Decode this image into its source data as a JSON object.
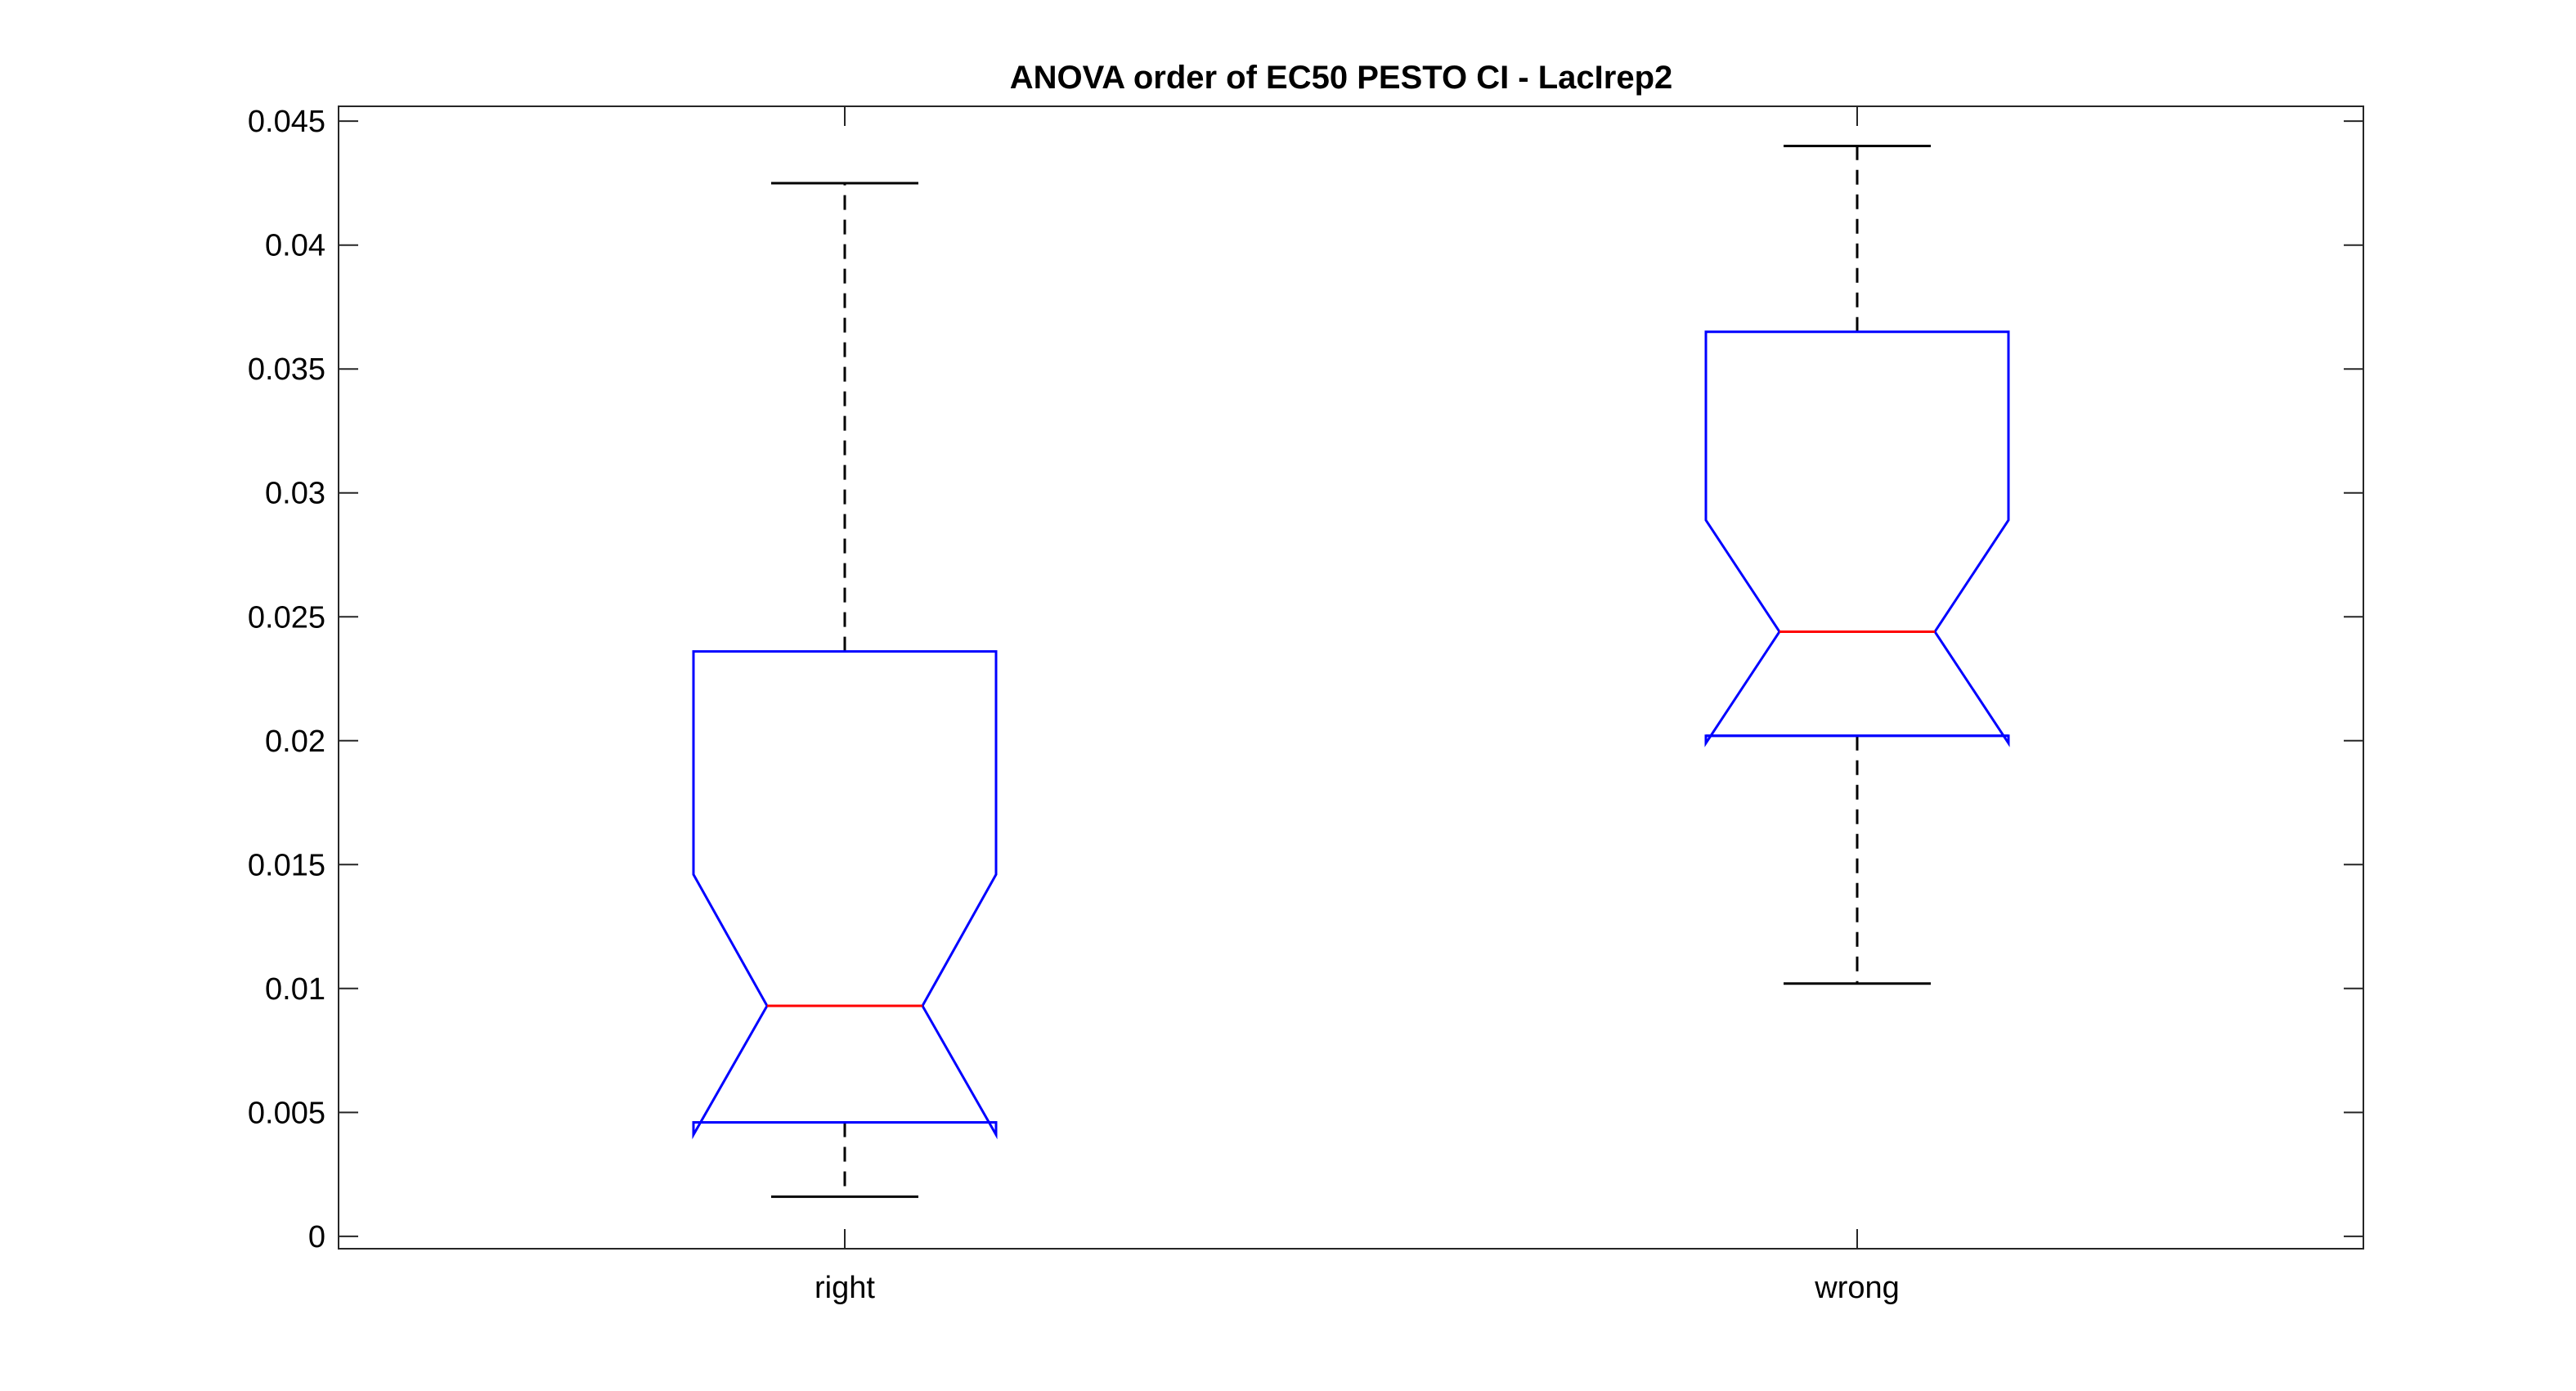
{
  "chart_data": {
    "type": "box",
    "title": "ANOVA order of EC50 PESTO CI - LacIrep2",
    "xlabel": "",
    "ylabel": "",
    "categories": [
      "right",
      "wrong"
    ],
    "ylim": [
      -0.0005,
      0.0456
    ],
    "yticks": [
      0,
      0.005,
      0.01,
      0.015,
      0.02,
      0.025,
      0.03,
      0.035,
      0.04,
      0.045
    ],
    "ytick_labels": [
      "0",
      "0.005",
      "0.01",
      "0.015",
      "0.02",
      "0.025",
      "0.03",
      "0.035",
      "0.04",
      "0.045"
    ],
    "notched": true,
    "grid": false,
    "boxes": [
      {
        "category": "right",
        "whisker_low": 0.0016,
        "q1": 0.0046,
        "notch_low": 0.0041,
        "median": 0.0093,
        "notch_high": 0.0146,
        "q3": 0.0236,
        "whisker_high": 0.0425
      },
      {
        "category": "wrong",
        "whisker_low": 0.0102,
        "q1": 0.0202,
        "notch_low": 0.0199,
        "median": 0.0244,
        "notch_high": 0.0289,
        "q3": 0.0365,
        "whisker_high": 0.044
      }
    ],
    "colors": {
      "box": "#0000ff",
      "median": "#ff0000",
      "whisker": "#000000",
      "axis": "#262626"
    }
  }
}
